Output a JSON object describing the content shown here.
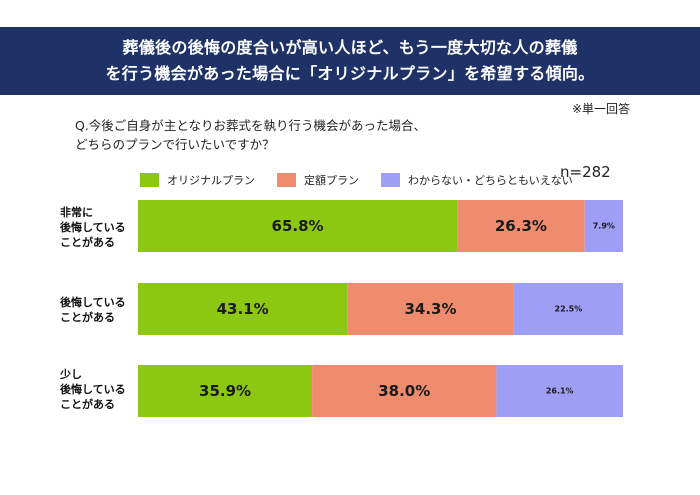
{
  "banner": {
    "line1": "葬儀後の後悔の度合いが高い人ほど、もう一度大切な人の葬儀",
    "line2": "を行う機会があった場合に「オリジナルプラン」を希望する傾向。"
  },
  "note": "※単一回答",
  "question": {
    "line1": "Q.今後ご自身が主となりお葬式を執り行う機会があった場合、",
    "line2": "どちらのプランで行いたいですか？"
  },
  "colors": {
    "original": "#8cc811",
    "fixed": "#f08c6e",
    "unknown": "#9e9ef5",
    "banner": "#1f3268"
  },
  "chart_data": {
    "type": "bar",
    "orientation": "horizontal",
    "stacked": true,
    "normalized": true,
    "n_label": "n=282",
    "categories": [
      [
        "非常に",
        "後悔している",
        "ことがある"
      ],
      [
        "後悔している",
        "ことがある"
      ],
      [
        "少し",
        "後悔している",
        "ことがある"
      ]
    ],
    "series": [
      {
        "name": "オリジナルプラン",
        "values": [
          65.8,
          43.1,
          35.9
        ],
        "labels": [
          "65.8%",
          "43.1%",
          "35.9%"
        ]
      },
      {
        "name": "定額プラン",
        "values": [
          26.3,
          34.3,
          38.0
        ],
        "labels": [
          "26.3%",
          "34.3%",
          "38.0%"
        ]
      },
      {
        "name": "わからない・どちらともいえない",
        "values": [
          7.9,
          22.5,
          26.1
        ],
        "labels": [
          "7.9%",
          "22.5%",
          "26.1%"
        ]
      }
    ],
    "xlim": [
      0,
      100
    ]
  }
}
